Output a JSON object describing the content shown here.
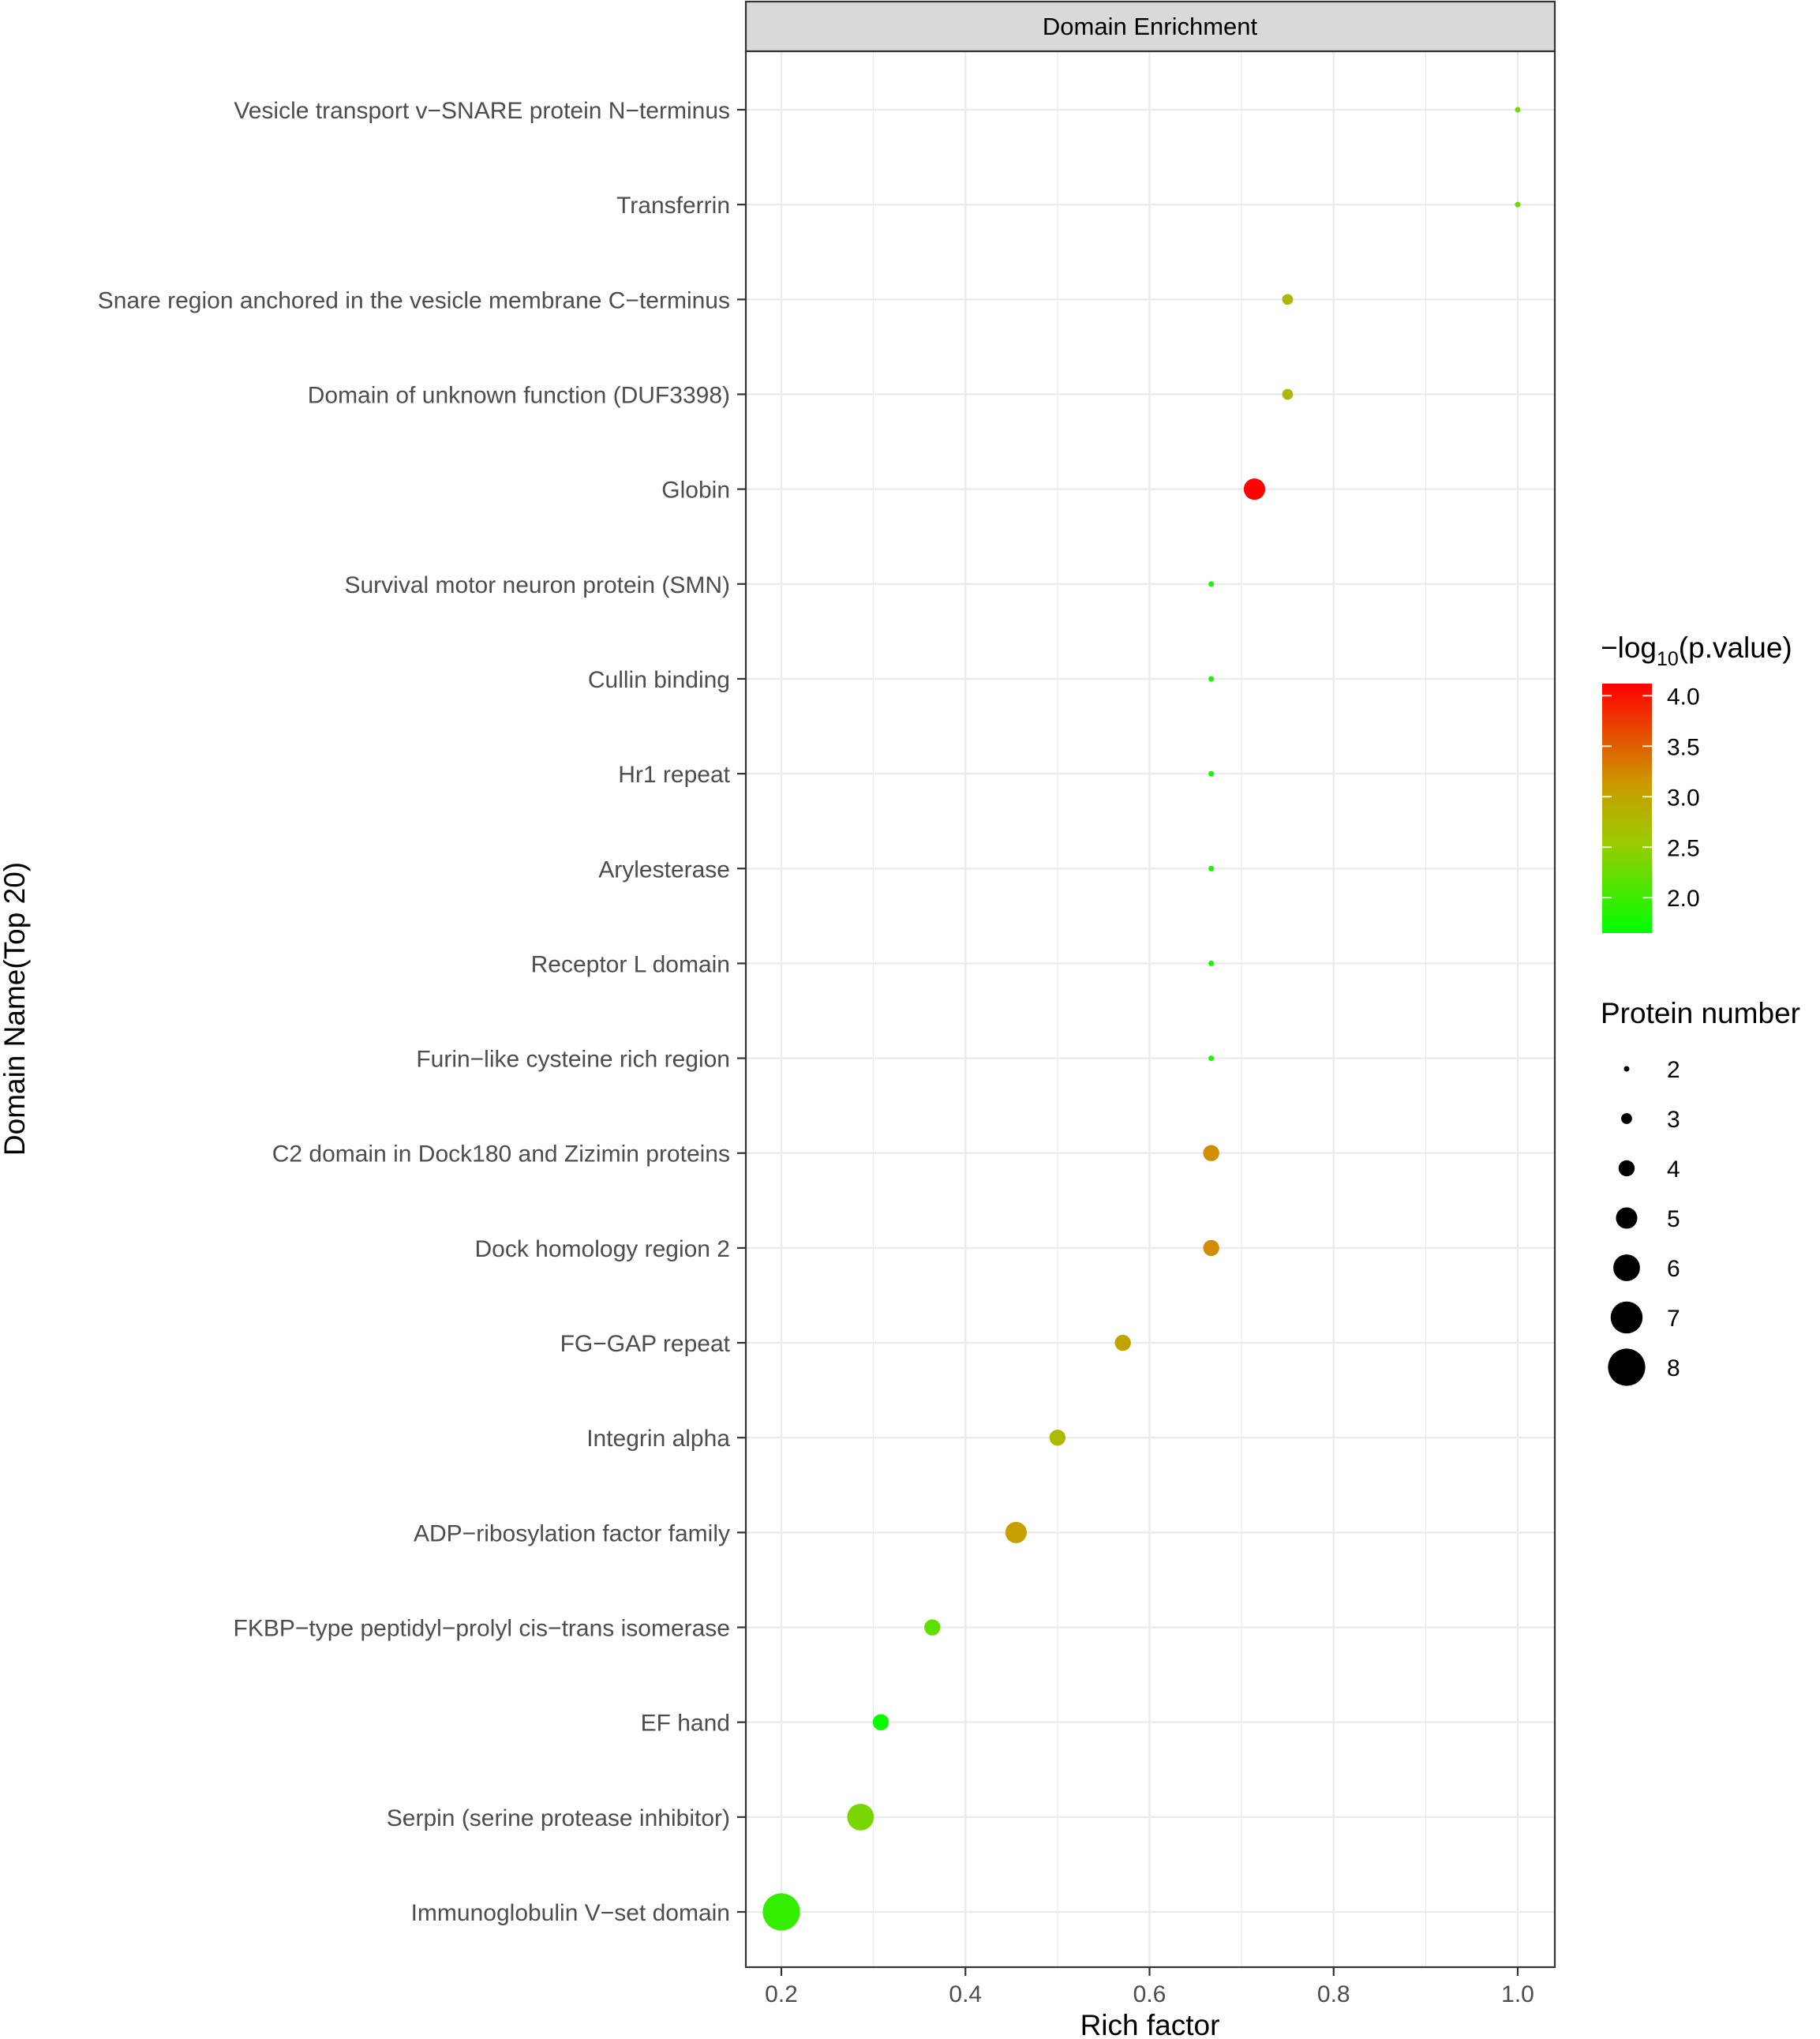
{
  "chart_data": {
    "type": "scatter",
    "panel_title": "Domain Enrichment",
    "xlabel": "Rich factor",
    "ylabel": "Domain Name(Top 20)",
    "xlim": [
      0.16,
      1.04
    ],
    "x_ticks": [
      0.2,
      0.4,
      0.6,
      0.8,
      1.0
    ],
    "x_tick_labels": [
      "0.2",
      "0.4",
      "0.6",
      "0.8",
      "1.0"
    ],
    "grid": true,
    "points": [
      {
        "domain": "Vesicle transport v−SNARE protein N−terminus",
        "rich_factor": 1.0,
        "neg_log10_p": 2.3,
        "protein_number": 2
      },
      {
        "domain": "Transferrin",
        "rich_factor": 1.0,
        "neg_log10_p": 2.3,
        "protein_number": 2
      },
      {
        "domain": "Snare region anchored in the vesicle membrane C−terminus",
        "rich_factor": 0.75,
        "neg_log10_p": 2.75,
        "protein_number": 3
      },
      {
        "domain": "Domain of unknown function (DUF3398)",
        "rich_factor": 0.75,
        "neg_log10_p": 2.75,
        "protein_number": 3
      },
      {
        "domain": "Globin",
        "rich_factor": 0.714,
        "neg_log10_p": 4.1,
        "protein_number": 5
      },
      {
        "domain": "Survival motor neuron protein (SMN)",
        "rich_factor": 0.667,
        "neg_log10_p": 1.8,
        "protein_number": 2
      },
      {
        "domain": "Cullin binding",
        "rich_factor": 0.667,
        "neg_log10_p": 1.8,
        "protein_number": 2
      },
      {
        "domain": "Hr1 repeat",
        "rich_factor": 0.667,
        "neg_log10_p": 1.8,
        "protein_number": 2
      },
      {
        "domain": "Arylesterase",
        "rich_factor": 0.667,
        "neg_log10_p": 1.8,
        "protein_number": 2
      },
      {
        "domain": "Receptor L domain",
        "rich_factor": 0.667,
        "neg_log10_p": 1.8,
        "protein_number": 2
      },
      {
        "domain": "Furin−like cysteine rich region",
        "rich_factor": 0.667,
        "neg_log10_p": 1.8,
        "protein_number": 2
      },
      {
        "domain": "C2 domain in Dock180 and Zizimin proteins",
        "rich_factor": 0.667,
        "neg_log10_p": 3.2,
        "protein_number": 4
      },
      {
        "domain": "Dock homology region 2",
        "rich_factor": 0.667,
        "neg_log10_p": 3.2,
        "protein_number": 4
      },
      {
        "domain": "FG−GAP repeat",
        "rich_factor": 0.571,
        "neg_log10_p": 3.0,
        "protein_number": 4
      },
      {
        "domain": "Integrin alpha",
        "rich_factor": 0.5,
        "neg_log10_p": 2.75,
        "protein_number": 4
      },
      {
        "domain": "ADP−ribosylation factor family",
        "rich_factor": 0.455,
        "neg_log10_p": 3.05,
        "protein_number": 5
      },
      {
        "domain": "FKBP−type peptidyl−prolyl cis−trans isomerase",
        "rich_factor": 0.364,
        "neg_log10_p": 2.2,
        "protein_number": 4
      },
      {
        "domain": "EF hand",
        "rich_factor": 0.308,
        "neg_log10_p": 1.7,
        "protein_number": 4
      },
      {
        "domain": "Serpin (serine protease inhibitor)",
        "rich_factor": 0.286,
        "neg_log10_p": 2.35,
        "protein_number": 6
      },
      {
        "domain": "Immunoglobulin V−set domain",
        "rich_factor": 0.2,
        "neg_log10_p": 1.95,
        "protein_number": 8
      }
    ],
    "color_legend": {
      "title_prefix": "−log",
      "title_sub": "10",
      "title_suffix": "(p.value)",
      "min": 1.65,
      "max": 4.12,
      "ticks": [
        4.0,
        3.5,
        3.0,
        2.5,
        2.0
      ],
      "tick_labels": [
        "4.0",
        "3.5",
        "3.0",
        "2.5",
        "2.0"
      ],
      "low_color": "#00ff00",
      "high_color": "#ff0000"
    },
    "size_legend": {
      "title": "Protein number",
      "values": [
        2,
        3,
        4,
        5,
        6,
        7,
        8
      ],
      "labels": [
        "2",
        "3",
        "4",
        "5",
        "6",
        "7",
        "8"
      ],
      "color": "#000000"
    }
  }
}
